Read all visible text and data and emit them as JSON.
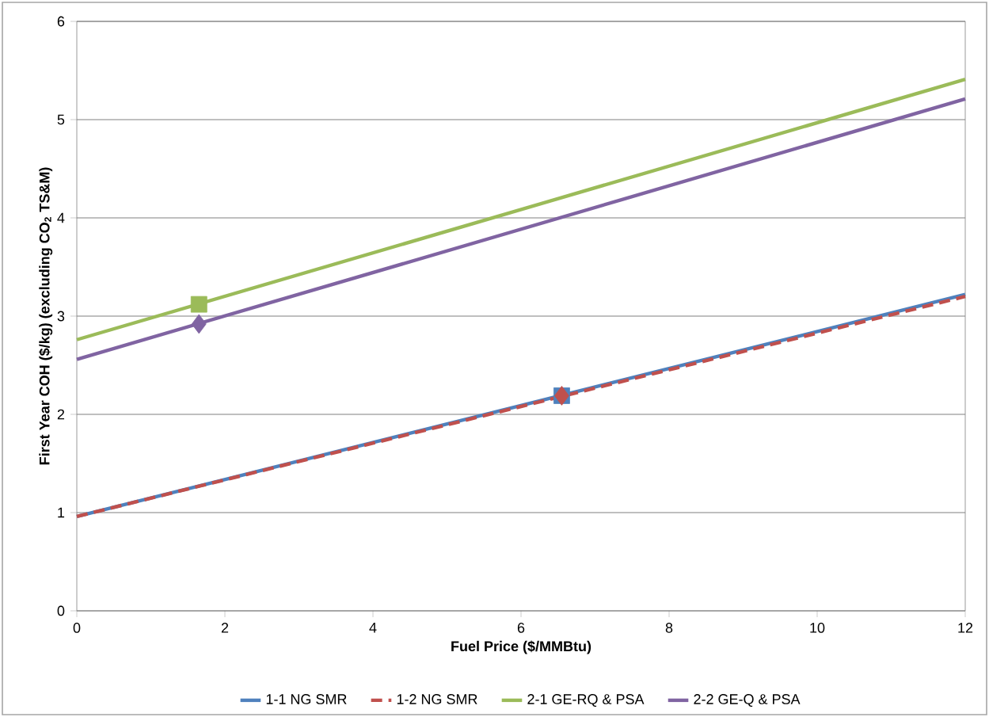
{
  "chart_data": {
    "type": "line",
    "xlabel": "Fuel Price ($/MMBtu)",
    "ylabel": "First Year COH ($/kg) (excluding CO$_{2}$ TS&M)",
    "xlim": [
      0,
      12
    ],
    "xticks": [
      0,
      2,
      4,
      6,
      8,
      10,
      12
    ],
    "ylim": [
      0,
      6
    ],
    "yticks": [
      0,
      1,
      2,
      3,
      4,
      5,
      6
    ],
    "grid": "y",
    "legend": "bottom",
    "series": [
      {
        "name": "1-1 NG SMR",
        "color": "#4f81bd",
        "x": [
          0,
          12
        ],
        "values": [
          0.96,
          3.22
        ],
        "line_style": "solid",
        "marker": "none"
      },
      {
        "name": "1-2 NG SMR",
        "color": "#c0504d",
        "x": [
          0,
          12
        ],
        "values": [
          0.96,
          3.2
        ],
        "line_style": "dashed",
        "marker": "none"
      },
      {
        "name": "2-1 GE-RQ & PSA",
        "color": "#9bbb59",
        "x": [
          0,
          12
        ],
        "values": [
          2.76,
          5.41
        ],
        "line_style": "solid",
        "marker": "none"
      },
      {
        "name": "2-2 GE-Q & PSA",
        "color": "#8064a2",
        "x": [
          0,
          12
        ],
        "values": [
          2.56,
          5.21
        ],
        "line_style": "solid",
        "marker": "none"
      },
      {
        "type": "scatter",
        "color": "#4f81bd",
        "x": [
          6.55
        ],
        "values": [
          2.19
        ],
        "marker": "square"
      },
      {
        "type": "scatter",
        "color": "#c0504d",
        "x": [
          6.55
        ],
        "values": [
          2.19
        ],
        "marker": "diamond"
      },
      {
        "type": "scatter",
        "color": "#9bbb59",
        "x": [
          1.65
        ],
        "values": [
          3.12
        ],
        "marker": "square"
      },
      {
        "type": "scatter",
        "color": "#8064a2",
        "x": [
          1.65
        ],
        "values": [
          2.92
        ],
        "marker": "diamond"
      }
    ]
  }
}
